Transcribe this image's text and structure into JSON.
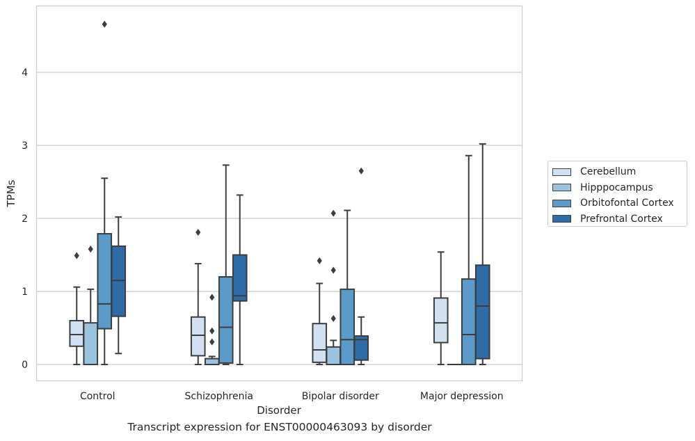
{
  "caption": "Transcript expression for ENST00000463093 by disorder",
  "chart_data": {
    "type": "box",
    "title": "",
    "xlabel": "Disorder",
    "ylabel": "TPMs",
    "categories": [
      "Control",
      "Schizophrenia",
      "Bipolar disorder",
      "Major depression"
    ],
    "ylim": [
      -0.23,
      4.9
    ],
    "yticks": [
      0,
      1,
      2,
      3,
      4
    ],
    "grid": true,
    "legend_position": "right",
    "series": [
      {
        "name": "Cerebellum",
        "color": "#d1e1f2",
        "boxes": [
          {
            "min": 0.0,
            "q1": 0.25,
            "median": 0.41,
            "q3": 0.6,
            "max": 1.06,
            "outliers": [
              1.49
            ]
          },
          {
            "min": 0.0,
            "q1": 0.12,
            "median": 0.4,
            "q3": 0.65,
            "max": 1.38,
            "outliers": [
              1.81
            ]
          },
          {
            "min": 0.0,
            "q1": 0.03,
            "median": 0.2,
            "q3": 0.56,
            "max": 1.11,
            "outliers": [
              1.42
            ]
          },
          {
            "min": 0.0,
            "q1": 0.3,
            "median": 0.57,
            "q3": 0.91,
            "max": 1.54,
            "outliers": []
          }
        ]
      },
      {
        "name": "Hipppocampus",
        "color": "#9ac3df",
        "boxes": [
          {
            "min": 0.0,
            "q1": 0.0,
            "median": 0.0,
            "q3": 0.57,
            "max": 1.03,
            "outliers": [
              1.58
            ]
          },
          {
            "min": 0.0,
            "q1": 0.0,
            "median": 0.0,
            "q3": 0.08,
            "max": 0.11,
            "outliers": [
              0.31,
              0.46,
              0.92
            ]
          },
          {
            "min": 0.0,
            "q1": 0.0,
            "median": 0.0,
            "q3": 0.24,
            "max": 0.33,
            "outliers": [
              0.63,
              1.29,
              2.07
            ]
          },
          {
            "min": 0.0,
            "q1": 0.0,
            "median": 0.0,
            "q3": 0.0,
            "max": 0.0,
            "outliers": []
          }
        ]
      },
      {
        "name": "Orbitofontal Cortex",
        "color": "#5a9bc9",
        "boxes": [
          {
            "min": 0.0,
            "q1": 0.49,
            "median": 0.83,
            "q3": 1.79,
            "max": 2.55,
            "outliers": [
              4.66
            ]
          },
          {
            "min": 0.0,
            "q1": 0.02,
            "median": 0.51,
            "q3": 1.2,
            "max": 2.73,
            "outliers": []
          },
          {
            "min": 0.0,
            "q1": 0.0,
            "median": 0.34,
            "q3": 1.03,
            "max": 2.11,
            "outliers": []
          },
          {
            "min": 0.0,
            "q1": 0.0,
            "median": 0.41,
            "q3": 1.17,
            "max": 2.86,
            "outliers": []
          }
        ]
      },
      {
        "name": "Prefrontal Cortex",
        "color": "#2d6ca6",
        "boxes": [
          {
            "min": 0.15,
            "q1": 0.66,
            "median": 1.15,
            "q3": 1.62,
            "max": 2.02,
            "outliers": []
          },
          {
            "min": 0.0,
            "q1": 0.87,
            "median": 0.94,
            "q3": 1.5,
            "max": 2.32,
            "outliers": []
          },
          {
            "min": 0.0,
            "q1": 0.06,
            "median": 0.34,
            "q3": 0.39,
            "max": 0.65,
            "outliers": [
              2.65
            ]
          },
          {
            "min": 0.0,
            "q1": 0.08,
            "median": 0.8,
            "q3": 1.36,
            "max": 3.02,
            "outliers": []
          }
        ]
      }
    ]
  }
}
